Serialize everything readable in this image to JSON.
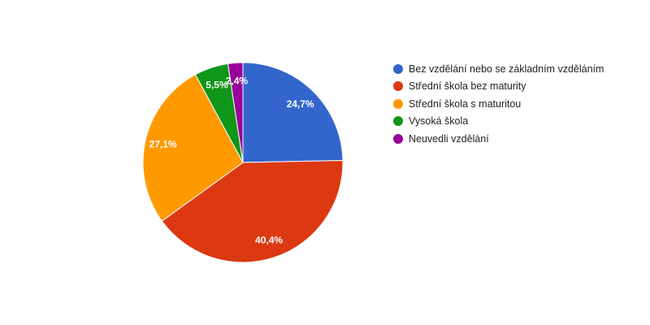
{
  "chart_data": {
    "type": "pie",
    "title": "",
    "categories": [
      "Bez vzdělání nebo se základním vzděláním",
      "Střední škola bez maturity",
      "Střední škola s maturitou",
      "Vysoká škola",
      "Neuvedli vzdělání"
    ],
    "values": [
      24.7,
      40.4,
      27.1,
      5.5,
      2.4
    ],
    "data_labels": [
      "24,7%",
      "40,4%",
      "27,1%",
      "5,5%",
      "2,4%"
    ],
    "colors": [
      "#3366cc",
      "#dc3912",
      "#ff9900",
      "#109618",
      "#990099"
    ],
    "legend_position": "right"
  }
}
